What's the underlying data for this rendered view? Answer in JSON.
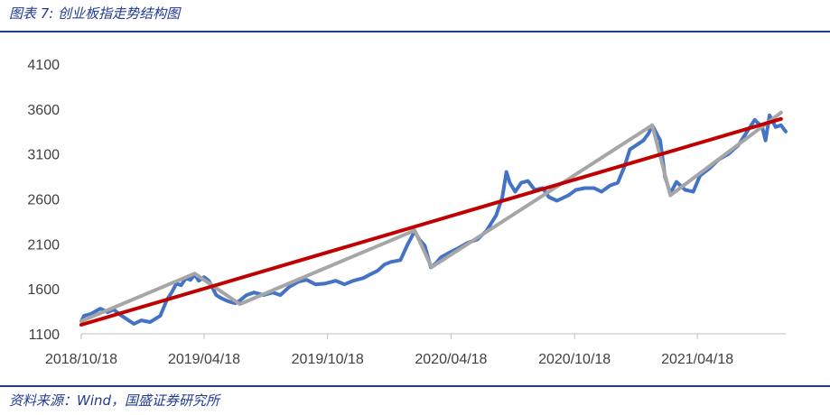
{
  "figure": {
    "title": "图表 7:  创业板指走势结构图",
    "source": "资料来源：Wind，国盛证券研究所"
  },
  "chart_data": {
    "type": "line",
    "title": "",
    "xlabel": "",
    "ylabel": "",
    "ylim": [
      1100,
      4100
    ],
    "yticks": [
      1100,
      1600,
      2100,
      2600,
      3100,
      3600,
      4100
    ],
    "xlim": [
      "2018-10-18",
      "2021-08-27"
    ],
    "xticks": [
      {
        "date": "2018-10-18",
        "label": "2018/10/18"
      },
      {
        "date": "2019-04-18",
        "label": "2019/04/18"
      },
      {
        "date": "2019-10-18",
        "label": "2019/10/18"
      },
      {
        "date": "2020-04-18",
        "label": "2020/04/18"
      },
      {
        "date": "2020-10-18",
        "label": "2020/10/18"
      },
      {
        "date": "2021-04-18",
        "label": "2021/04/18"
      }
    ],
    "grid": false,
    "legend": "none",
    "series": [
      {
        "role": "index",
        "color": "#4472c4",
        "points": [
          [
            "2018-10-18",
            1240
          ],
          [
            "2018-10-22",
            1300
          ],
          [
            "2018-11-01",
            1320
          ],
          [
            "2018-11-15",
            1380
          ],
          [
            "2018-11-26",
            1340
          ],
          [
            "2018-12-05",
            1370
          ],
          [
            "2018-12-15",
            1310
          ],
          [
            "2018-12-25",
            1260
          ],
          [
            "2019-01-04",
            1210
          ],
          [
            "2019-01-15",
            1250
          ],
          [
            "2019-01-28",
            1230
          ],
          [
            "2019-02-12",
            1300
          ],
          [
            "2019-02-22",
            1480
          ],
          [
            "2019-03-01",
            1560
          ],
          [
            "2019-03-08",
            1660
          ],
          [
            "2019-03-15",
            1640
          ],
          [
            "2019-03-22",
            1720
          ],
          [
            "2019-03-29",
            1700
          ],
          [
            "2019-04-04",
            1760
          ],
          [
            "2019-04-10",
            1690
          ],
          [
            "2019-04-18",
            1730
          ],
          [
            "2019-04-25",
            1690
          ],
          [
            "2019-05-06",
            1530
          ],
          [
            "2019-05-15",
            1490
          ],
          [
            "2019-05-24",
            1460
          ],
          [
            "2019-06-03",
            1440
          ],
          [
            "2019-06-10",
            1470
          ],
          [
            "2019-06-20",
            1530
          ],
          [
            "2019-07-01",
            1560
          ],
          [
            "2019-07-15",
            1530
          ],
          [
            "2019-07-29",
            1560
          ],
          [
            "2019-08-09",
            1530
          ],
          [
            "2019-08-22",
            1620
          ],
          [
            "2019-09-05",
            1680
          ],
          [
            "2019-09-17",
            1700
          ],
          [
            "2019-09-30",
            1650
          ],
          [
            "2019-10-15",
            1660
          ],
          [
            "2019-10-30",
            1690
          ],
          [
            "2019-11-12",
            1650
          ],
          [
            "2019-11-25",
            1690
          ],
          [
            "2019-12-10",
            1720
          ],
          [
            "2019-12-20",
            1760
          ],
          [
            "2019-12-31",
            1800
          ],
          [
            "2020-01-10",
            1870
          ],
          [
            "2020-01-20",
            1900
          ],
          [
            "2020-02-03",
            1920
          ],
          [
            "2020-02-14",
            2100
          ],
          [
            "2020-02-24",
            2240
          ],
          [
            "2020-03-02",
            2150
          ],
          [
            "2020-03-10",
            2080
          ],
          [
            "2020-03-19",
            1840
          ],
          [
            "2020-03-26",
            1880
          ],
          [
            "2020-04-03",
            1950
          ],
          [
            "2020-04-15",
            2000
          ],
          [
            "2020-04-28",
            2050
          ],
          [
            "2020-05-12",
            2110
          ],
          [
            "2020-05-27",
            2150
          ],
          [
            "2020-06-10",
            2250
          ],
          [
            "2020-06-24",
            2420
          ],
          [
            "2020-07-03",
            2620
          ],
          [
            "2020-07-09",
            2900
          ],
          [
            "2020-07-14",
            2780
          ],
          [
            "2020-07-22",
            2680
          ],
          [
            "2020-07-31",
            2780
          ],
          [
            "2020-08-10",
            2800
          ],
          [
            "2020-08-20",
            2700
          ],
          [
            "2020-09-01",
            2720
          ],
          [
            "2020-09-10",
            2620
          ],
          [
            "2020-09-22",
            2580
          ],
          [
            "2020-10-09",
            2640
          ],
          [
            "2020-10-20",
            2700
          ],
          [
            "2020-11-02",
            2720
          ],
          [
            "2020-11-16",
            2720
          ],
          [
            "2020-11-27",
            2680
          ],
          [
            "2020-12-10",
            2750
          ],
          [
            "2020-12-21",
            2780
          ],
          [
            "2020-12-31",
            2960
          ],
          [
            "2021-01-08",
            3150
          ],
          [
            "2021-01-18",
            3200
          ],
          [
            "2021-01-28",
            3250
          ],
          [
            "2021-02-05",
            3330
          ],
          [
            "2021-02-10",
            3420
          ],
          [
            "2021-02-22",
            3250
          ],
          [
            "2021-03-01",
            2850
          ],
          [
            "2021-03-09",
            2660
          ],
          [
            "2021-03-18",
            2790
          ],
          [
            "2021-03-31",
            2700
          ],
          [
            "2021-04-12",
            2680
          ],
          [
            "2021-04-22",
            2860
          ],
          [
            "2021-05-06",
            2940
          ],
          [
            "2021-05-20",
            3040
          ],
          [
            "2021-06-03",
            3100
          ],
          [
            "2021-06-18",
            3200
          ],
          [
            "2021-06-30",
            3340
          ],
          [
            "2021-07-12",
            3480
          ],
          [
            "2021-07-23",
            3400
          ],
          [
            "2021-07-28",
            3250
          ],
          [
            "2021-08-03",
            3530
          ],
          [
            "2021-08-12",
            3400
          ],
          [
            "2021-08-20",
            3420
          ],
          [
            "2021-08-27",
            3350
          ]
        ]
      },
      {
        "role": "structure",
        "color": "#a6a6a6",
        "points": [
          [
            "2018-10-18",
            1240
          ],
          [
            "2019-04-04",
            1770
          ],
          [
            "2019-06-10",
            1430
          ],
          [
            "2020-02-24",
            2250
          ],
          [
            "2020-03-20",
            1840
          ],
          [
            "2021-02-10",
            3420
          ],
          [
            "2021-03-09",
            2640
          ],
          [
            "2021-08-20",
            3560
          ]
        ]
      },
      {
        "role": "trend",
        "color": "#c00000",
        "points": [
          [
            "2018-10-18",
            1200
          ],
          [
            "2021-08-20",
            3490
          ]
        ]
      }
    ]
  }
}
